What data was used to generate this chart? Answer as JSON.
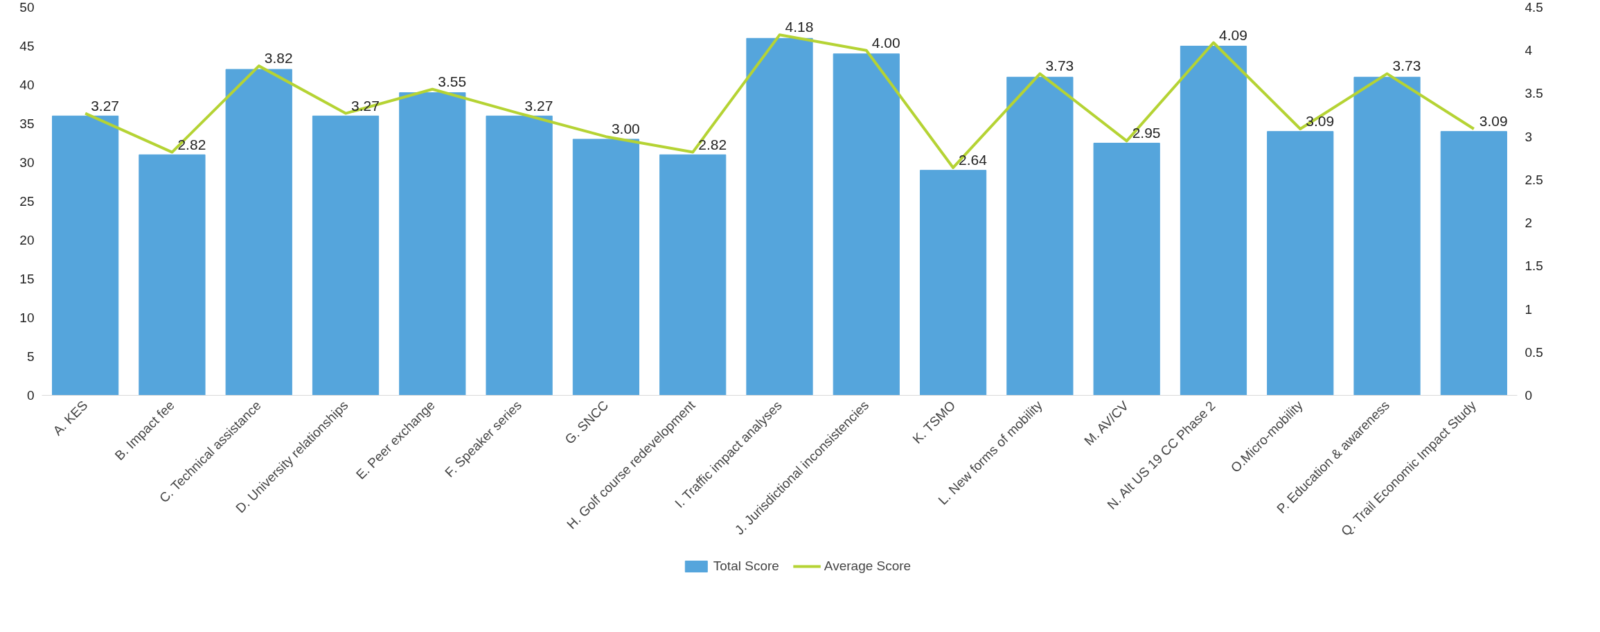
{
  "chart_data": {
    "type": "bar",
    "categories": [
      "A. KES",
      "B. Impact fee",
      "C. Technical assistance",
      "D. University relationships",
      "E. Peer exchange",
      "F. Speaker series",
      "G. SNCC",
      "H. Golf course redevelopment",
      "I. Traffic impact analyses",
      "J. Jurisdictional inconsistencies",
      "K. TSMO",
      "L. New forms of mobility",
      "M. AV/CV",
      "N. Alt US 19 CC Phase 2",
      "O.Micro-mobility",
      "P. Education & awareness",
      "Q. Trail Economic Impact Study"
    ],
    "series": [
      {
        "name": "Total Score",
        "color": "#55a5dc",
        "values": [
          36,
          31,
          42,
          36,
          39,
          36,
          33,
          31,
          46,
          44,
          29,
          41,
          32.5,
          45,
          34,
          41,
          34
        ]
      },
      {
        "name": "Average Score",
        "type": "line",
        "axis": "y2",
        "color": "#b5d334",
        "values": [
          3.27,
          2.82,
          3.82,
          3.27,
          3.55,
          3.27,
          3.0,
          2.82,
          4.18,
          4.0,
          2.64,
          3.73,
          2.95,
          4.09,
          3.09,
          3.73,
          3.09
        ],
        "value_labels": [
          "3.27",
          "2.82",
          "3.82",
          "3.27",
          "3.55",
          "3.27",
          "3.00",
          "2.82",
          "4.18",
          "4.00",
          "2.64",
          "3.73",
          "2.95",
          "4.09",
          "3.09",
          "3.73",
          "3.09"
        ]
      }
    ],
    "ylim": [
      0,
      50
    ],
    "yticks": [
      0,
      5,
      10,
      15,
      20,
      25,
      30,
      35,
      40,
      45,
      50
    ],
    "y2lim": [
      0,
      4.5
    ],
    "y2ticks": [
      0,
      0.5,
      1,
      1.5,
      2,
      2.5,
      3,
      3.5,
      4,
      4.5
    ],
    "legend": "bottom",
    "grid": false,
    "marker": "none"
  }
}
